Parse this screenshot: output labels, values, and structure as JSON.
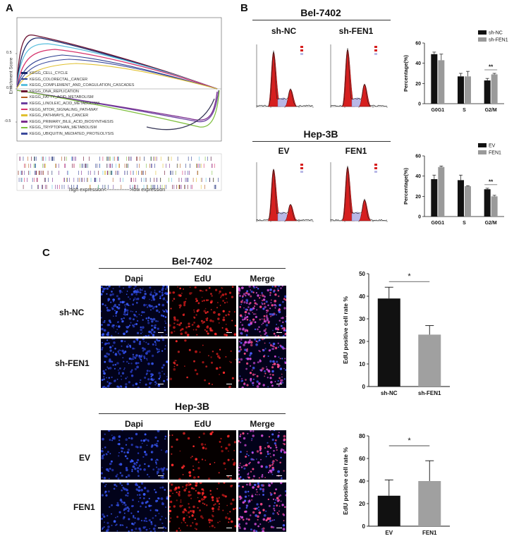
{
  "labels": {
    "panel_a": "A",
    "panel_b": "B",
    "panel_c": "C"
  },
  "gsea": {
    "ylabel": "Enrichment Score",
    "xaxis_caption": "high expression<-------------->low expression",
    "ticks": [
      "0.5",
      "0.0",
      "-0.5"
    ],
    "sets": [
      {
        "name": "KEGG_CELL_CYCLE",
        "color": "#1a2a6c"
      },
      {
        "name": "KEGG_COLORECTAL_CANCER",
        "color": "#2c3e90"
      },
      {
        "name": "KEGG_COMPLEMENT_AND_COAGULATION_CASCADES",
        "color": "#5bc0de"
      },
      {
        "name": "KEGG_DNA_REPLICATION",
        "color": "#6a1030"
      },
      {
        "name": "KEGG_FATTY_ACID_METABOLISM",
        "color": "#b35a1f"
      },
      {
        "name": "KEGG_LINOLEIC_ACID_METABOLISM",
        "color": "#6b3fa0"
      },
      {
        "name": "KEGG_MTOR_SIGNALING_PATHWAY",
        "color": "#d6336c"
      },
      {
        "name": "KEGG_PATHWAYS_IN_CANCER",
        "color": "#e0c030"
      },
      {
        "name": "KEGG_PRIMARY_BILE_ACID_BIOSYNTHESIS",
        "color": "#7b2d8e"
      },
      {
        "name": "KEGG_TRYPTOPHAN_METABOLISM",
        "color": "#7fbf3f"
      },
      {
        "name": "KEGG_UBIQUITIN_MEDIATED_PROTEOLYSIS",
        "color": "#3b4a9c"
      }
    ]
  },
  "panel_b": {
    "bel_title": "Bel-7402",
    "bel_left": "sh-NC",
    "bel_right": "sh-FEN1",
    "hep_title": "Hep-3B",
    "hep_left": "EV",
    "hep_right": "FEN1"
  },
  "panel_c": {
    "bel_title": "Bel-7402",
    "hep_title": "Hep-3B",
    "col_dapi": "Dapi",
    "col_edu": "EdU",
    "col_merge": "Merge",
    "bel_row1": "sh-NC",
    "bel_row2": "sh-FEN1",
    "hep_row1": "EV",
    "hep_row2": "FEN1"
  },
  "chart_data": [
    {
      "id": "cellcycle-bel",
      "type": "bar",
      "categories": [
        "G0G1",
        "S",
        "G2/M"
      ],
      "ylabel": "Percentage(%)",
      "ylim": [
        0,
        60
      ],
      "yticks": [
        0,
        20,
        40,
        60
      ],
      "series": [
        {
          "name": "sh-NC",
          "color": "#111111",
          "values": [
            49,
            27,
            23
          ],
          "errors": [
            2,
            3,
            2
          ]
        },
        {
          "name": "sh-FEN1",
          "color": "#9a9a9a",
          "values": [
            43,
            27,
            29
          ],
          "errors": [
            6,
            5,
            1
          ]
        }
      ],
      "significance": [
        {
          "category": "G2/M",
          "label": "**"
        }
      ],
      "legend": "top-right"
    },
    {
      "id": "cellcycle-hep",
      "type": "bar",
      "categories": [
        "G0G1",
        "S",
        "G2/M"
      ],
      "ylabel": "Percentage(%)",
      "ylim": [
        0,
        60
      ],
      "yticks": [
        0,
        20,
        40,
        60
      ],
      "series": [
        {
          "name": "EV",
          "color": "#111111",
          "values": [
            37,
            36,
            27
          ],
          "errors": [
            4,
            5,
            1
          ]
        },
        {
          "name": "FEN1",
          "color": "#9a9a9a",
          "values": [
            49,
            30,
            20
          ],
          "errors": [
            1,
            0.5,
            1
          ]
        }
      ],
      "significance": [
        {
          "category": "G2/M",
          "label": "**"
        }
      ],
      "legend": "top-right"
    },
    {
      "id": "edu-bel",
      "type": "bar",
      "categories": [
        "sh-NC",
        "sh-FEN1"
      ],
      "ylabel": "EdU positive cell rate %",
      "ylim": [
        0,
        50
      ],
      "yticks": [
        0,
        10,
        20,
        30,
        40,
        50
      ],
      "series": [
        {
          "values": [
            39,
            23
          ],
          "errors": [
            5,
            4
          ],
          "colors": [
            "#111111",
            "#a0a0a0"
          ]
        }
      ],
      "significance": [
        {
          "label": "*"
        }
      ]
    },
    {
      "id": "edu-hep",
      "type": "bar",
      "categories": [
        "EV",
        "FEN1"
      ],
      "ylabel": "EdU positive cell rate %",
      "ylim": [
        0,
        80
      ],
      "yticks": [
        0,
        20,
        40,
        60,
        80
      ],
      "series": [
        {
          "values": [
            27,
            40
          ],
          "errors": [
            14,
            18
          ],
          "colors": [
            "#111111",
            "#a0a0a0"
          ]
        }
      ],
      "significance": [
        {
          "label": "*"
        }
      ]
    }
  ]
}
